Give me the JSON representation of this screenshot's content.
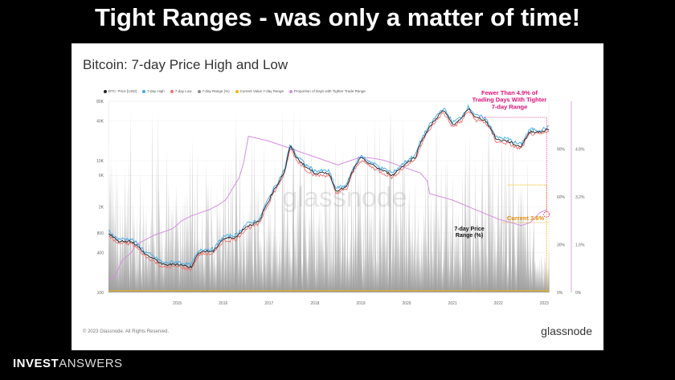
{
  "slide_title": "Tight Ranges - was only a matter of time!",
  "card": {
    "title": "Bitcoin: 7-day Price High and Low",
    "copyright": "© 2023 Glassnode. All Rights Reserved.",
    "brand": "glassnode",
    "watermark": "glassnode"
  },
  "footer_brand": {
    "bold": "INVEST",
    "light": "ANSWERS"
  },
  "annotations": {
    "fewer_than": "Fewer Than 4.9% of Trading Days With Tighter 7-day Range",
    "current": "Current 3.6%",
    "range_label": "7-day Price Range (%)"
  },
  "colors": {
    "price": "#222222",
    "high": "#3ea8e8",
    "low": "#f07070",
    "range": "#8c8c8c",
    "current": "#f5b800",
    "proportion": "#d58ee0",
    "annotation_pink": "#e0117a",
    "annotation_orange": "#e08a00"
  },
  "chart_data": {
    "type": "line",
    "title": "Bitcoin: 7-day Price High and Low",
    "legend": [
      {
        "name": "BTC: Price [USD]",
        "color": "#222222"
      },
      {
        "name": "7-day High",
        "color": "#3ea8e8"
      },
      {
        "name": "7-day Low",
        "color": "#f07070"
      },
      {
        "name": "7-day Range (%)",
        "color": "#8c8c8c"
      },
      {
        "name": "Current Value 7-day Range",
        "color": "#f5b800"
      },
      {
        "name": "Proportion of Days with Tighter Trade Range",
        "color": "#d58ee0"
      }
    ],
    "legend_position": "top-left",
    "x_ticks": [
      "2015",
      "2016",
      "2017",
      "2018",
      "2019",
      "2020",
      "2021",
      "2022",
      "2023"
    ],
    "x_range": [
      2014.0,
      2023.6
    ],
    "y_left": {
      "scale": "log",
      "ticks": [
        "100",
        "400",
        "800",
        "2K",
        "6K",
        "10K",
        "40K",
        "80K"
      ],
      "range": [
        100,
        80000
      ]
    },
    "y_mid": {
      "ticks": [
        "0%",
        "30%",
        "60%",
        "90%"
      ],
      "range": [
        0,
        1.2
      ]
    },
    "y_right": {
      "ticks": [
        "0%",
        "1.6%",
        "3.2%",
        "4.8%"
      ],
      "range": [
        0,
        6.4
      ]
    },
    "series": [
      {
        "name": "BTC: Price [USD]",
        "axis": "left",
        "x": [
          2014.0,
          2014.2,
          2014.5,
          2014.8,
          2015.0,
          2015.2,
          2015.5,
          2015.8,
          2016.0,
          2016.3,
          2016.5,
          2016.8,
          2017.0,
          2017.3,
          2017.5,
          2017.7,
          2017.85,
          2017.97,
          2018.1,
          2018.3,
          2018.5,
          2018.8,
          2018.95,
          2019.2,
          2019.5,
          2019.7,
          2019.95,
          2020.2,
          2020.5,
          2020.7,
          2020.95,
          2021.1,
          2021.3,
          2021.5,
          2021.7,
          2021.85,
          2022.0,
          2022.2,
          2022.45,
          2022.7,
          2022.9,
          2023.0,
          2023.2,
          2023.4,
          2023.6
        ],
        "values": [
          800,
          600,
          600,
          380,
          320,
          260,
          270,
          240,
          420,
          420,
          650,
          700,
          1000,
          1200,
          2500,
          4500,
          7000,
          16500,
          11000,
          8000,
          6500,
          6500,
          3500,
          4000,
          11000,
          9000,
          7200,
          6000,
          9200,
          11500,
          28000,
          40000,
          58000,
          35000,
          43000,
          62000,
          45000,
          42000,
          21000,
          20000,
          17000,
          16500,
          28000,
          27000,
          30000
        ]
      },
      {
        "name": "Proportion of Days with Tighter Trade Range",
        "axis": "mid",
        "x": [
          2014.0,
          2014.15,
          2014.3,
          2014.5,
          2014.6,
          2014.8,
          2015.0,
          2015.2,
          2015.4,
          2015.6,
          2015.8,
          2016.0,
          2016.2,
          2016.4,
          2016.55,
          2016.6,
          2016.7,
          2016.85,
          2016.95,
          2017.05,
          2017.5,
          2018.0,
          2018.5,
          2019.0,
          2019.2,
          2019.5,
          2019.8,
          2020.0,
          2020.2,
          2020.5,
          2020.8,
          2020.95,
          2021.0,
          2021.5,
          2022.0,
          2022.5,
          2023.0,
          2023.2,
          2023.4,
          2023.55
        ],
        "values": [
          0.08,
          0.1,
          0.2,
          0.25,
          0.3,
          0.33,
          0.36,
          0.38,
          0.4,
          0.45,
          0.48,
          0.5,
          0.52,
          0.55,
          0.58,
          0.6,
          0.65,
          0.72,
          0.82,
          0.98,
          0.95,
          0.9,
          0.85,
          0.8,
          0.82,
          0.85,
          0.84,
          0.83,
          0.81,
          0.78,
          0.75,
          0.7,
          0.62,
          0.58,
          0.52,
          0.46,
          0.42,
          0.44,
          0.5,
          0.52
        ]
      },
      {
        "name": "Current Value 7-day Range",
        "axis": "right",
        "values": [
          3.6
        ]
      }
    ]
  }
}
